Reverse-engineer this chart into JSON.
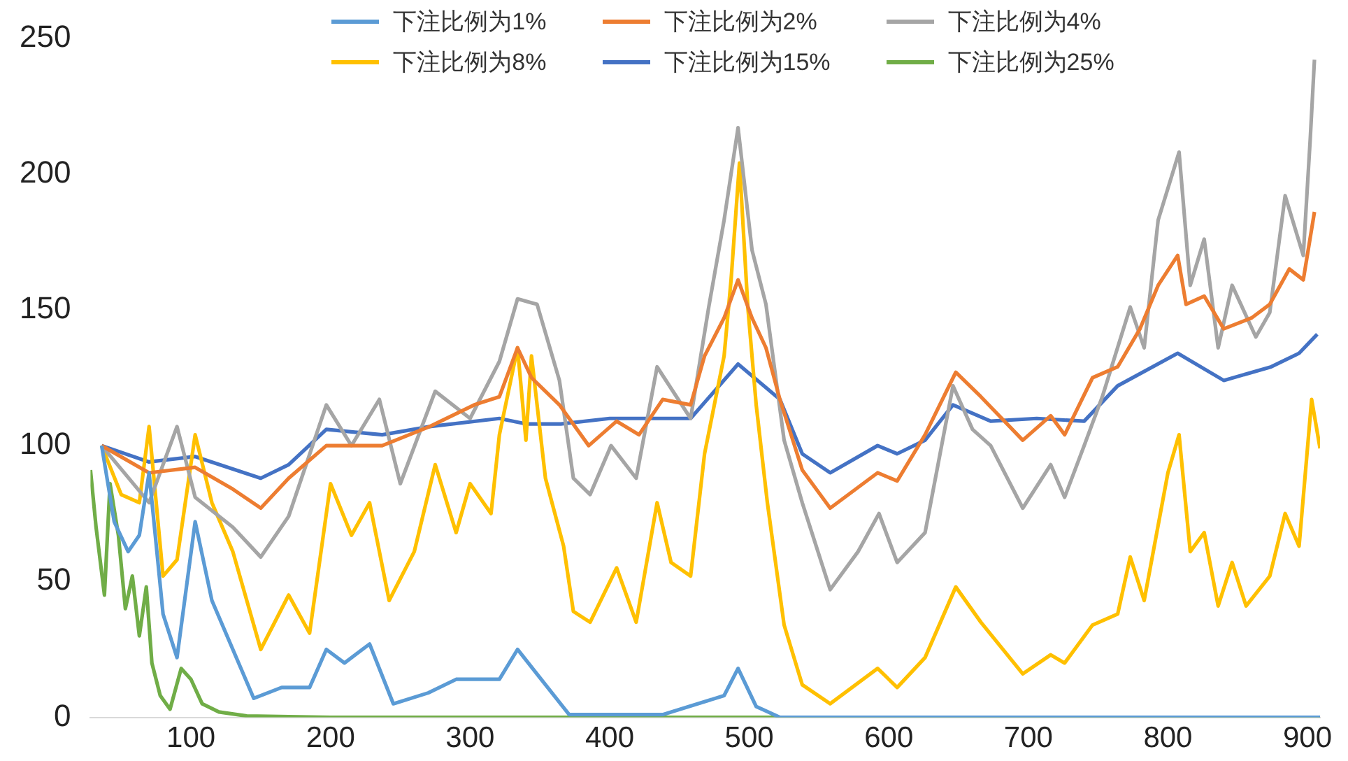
{
  "chart_data": {
    "type": "line",
    "xlim": [
      28,
      909
    ],
    "xticks": [
      100,
      200,
      300,
      400,
      500,
      600,
      700,
      800,
      900
    ],
    "ylim": [
      0,
      250
    ],
    "yticks": [
      0,
      50,
      100,
      150,
      200,
      250
    ],
    "grid": false,
    "legend": "top",
    "marker": "none",
    "line_style": "solid",
    "series": [
      {
        "name": "下注比例为1%",
        "color": "#5b9bd5",
        "x": [
          36,
          45,
          55,
          63,
          70,
          80,
          90,
          103,
          115,
          130,
          145,
          165,
          185,
          197,
          210,
          228,
          245,
          270,
          290,
          321,
          334,
          371,
          438,
          482,
          492,
          505,
          522,
          600,
          700,
          800,
          909
        ],
        "values": [
          100,
          72,
          61,
          67,
          90,
          38,
          22,
          72,
          43,
          25,
          7,
          11,
          11,
          25,
          20,
          27,
          5,
          9,
          14,
          14,
          25,
          1,
          1,
          8,
          18,
          4,
          0,
          0,
          0,
          0,
          0
        ]
      },
      {
        "name": "下注比例为2%",
        "color": "#ed7d31",
        "x": [
          36,
          70,
          103,
          130,
          150,
          170,
          197,
          237,
          271,
          303,
          321,
          334,
          344,
          364,
          385,
          405,
          421,
          438,
          458,
          468,
          482,
          492,
          502,
          512,
          522,
          538,
          558,
          592,
          606,
          626,
          648,
          666,
          696,
          716,
          726,
          746,
          764,
          780,
          793,
          807,
          813,
          826,
          840,
          860,
          873,
          887,
          897,
          905
        ],
        "values": [
          100,
          90,
          92,
          84,
          77,
          88,
          100,
          100,
          107,
          115,
          118,
          136,
          125,
          115,
          100,
          109,
          104,
          117,
          115,
          133,
          147,
          161,
          147,
          136,
          117,
          91,
          77,
          90,
          87,
          104,
          127,
          118,
          102,
          111,
          104,
          125,
          129,
          143,
          159,
          170,
          152,
          155,
          143,
          147,
          152,
          165,
          161,
          186
        ]
      },
      {
        "name": "下注比例为4%",
        "color": "#a5a5a5",
        "x": [
          36,
          70,
          90,
          103,
          130,
          150,
          170,
          197,
          215,
          235,
          250,
          275,
          300,
          321,
          334,
          348,
          364,
          374,
          386,
          401,
          419,
          434,
          458,
          471,
          482,
          492,
          502,
          512,
          525,
          538,
          558,
          578,
          593,
          606,
          626,
          646,
          660,
          673,
          696,
          716,
          726,
          740,
          753,
          773,
          783,
          793,
          808,
          816,
          826,
          836,
          846,
          863,
          873,
          884,
          897,
          902,
          905
        ],
        "values": [
          100,
          79,
          107,
          81,
          70,
          59,
          74,
          115,
          100,
          117,
          86,
          120,
          110,
          131,
          154,
          152,
          124,
          88,
          82,
          100,
          88,
          129,
          110,
          151,
          183,
          217,
          172,
          152,
          102,
          79,
          47,
          61,
          75,
          57,
          68,
          122,
          106,
          100,
          77,
          93,
          81,
          100,
          118,
          151,
          136,
          183,
          208,
          159,
          176,
          136,
          159,
          140,
          149,
          192,
          170,
          213,
          242
        ]
      },
      {
        "name": "下注比例为8%",
        "color": "#ffc000",
        "x": [
          36,
          50,
          63,
          70,
          80,
          90,
          103,
          115,
          130,
          150,
          170,
          185,
          200,
          215,
          228,
          242,
          260,
          275,
          290,
          300,
          315,
          321,
          334,
          340,
          344,
          354,
          367,
          374,
          386,
          405,
          419,
          434,
          444,
          458,
          468,
          482,
          487,
          493,
          499,
          505,
          513,
          525,
          538,
          558,
          592,
          606,
          626,
          648,
          666,
          696,
          716,
          726,
          746,
          764,
          773,
          783,
          800,
          808,
          816,
          826,
          836,
          846,
          856,
          873,
          884,
          894,
          903,
          909
        ],
        "values": [
          100,
          82,
          79,
          107,
          52,
          58,
          104,
          79,
          61,
          25,
          45,
          31,
          86,
          67,
          79,
          43,
          61,
          93,
          68,
          86,
          75,
          104,
          136,
          102,
          133,
          88,
          63,
          39,
          35,
          55,
          35,
          79,
          57,
          52,
          97,
          133,
          161,
          204,
          151,
          115,
          79,
          34,
          12,
          5,
          18,
          11,
          22,
          48,
          35,
          16,
          23,
          20,
          34,
          38,
          59,
          43,
          90,
          104,
          61,
          68,
          41,
          57,
          41,
          52,
          75,
          63,
          117,
          99
        ]
      },
      {
        "name": "下注比例为15%",
        "color": "#4472c4",
        "x": [
          36,
          70,
          103,
          150,
          170,
          197,
          237,
          271,
          321,
          340,
          365,
          400,
          458,
          492,
          522,
          538,
          558,
          592,
          606,
          626,
          646,
          673,
          706,
          740,
          764,
          807,
          840,
          874,
          894,
          907
        ],
        "values": [
          100,
          94,
          96,
          88,
          93,
          106,
          104,
          107,
          110,
          108,
          108,
          110,
          110,
          130,
          117,
          97,
          90,
          100,
          97,
          102,
          115,
          109,
          110,
          109,
          122,
          134,
          124,
          129,
          134,
          141
        ]
      },
      {
        "name": "下注比例为25%",
        "color": "#70ad47",
        "x": [
          28,
          32,
          38,
          42,
          48,
          53,
          58,
          63,
          68,
          72,
          78,
          85,
          93,
          100,
          108,
          120,
          140,
          200,
          500,
          909
        ],
        "values": [
          91,
          70,
          45,
          86,
          67,
          40,
          52,
          30,
          48,
          20,
          8,
          3,
          18,
          14,
          5,
          2,
          0.5,
          0,
          0,
          0
        ]
      }
    ]
  }
}
